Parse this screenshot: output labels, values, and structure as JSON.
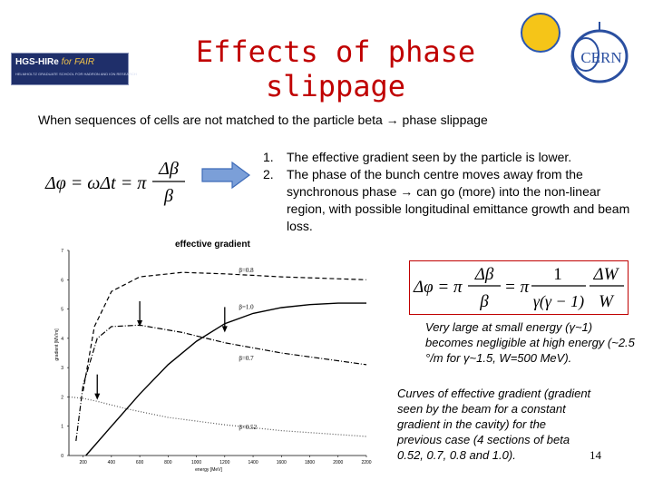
{
  "slide": {
    "title": "Effects of phase slippage",
    "intro": "When sequences of cells are not matched to the particle beta → phase slippage",
    "items": [
      {
        "num": "1.",
        "text": "The effective gradient seen by the particle is lower."
      },
      {
        "num": "2.",
        "text": "The phase of the bunch centre moves away from the synchronous phase → can go (more) into the non-linear region, with possible longitudinal emittance growth and beam loss."
      }
    ],
    "note1": "Very large at small energy (γ~1) becomes negligible at high energy (~2.5 °/m for γ~1.5, W=500 MeV).",
    "note2": "Curves of effective gradient (gradient seen by the beam for a constant gradient in the cavity) for the previous case (4 sections of beta 0.52, 0.7, 0.8 and 1.0).",
    "page_number": "14"
  },
  "logos": {
    "left_main": "HGS-HIRe",
    "left_for": "for FAIR",
    "left_sub": "HELMHOLTZ GRADUATE SCHOOL FOR HADRON AND ION RESEARCH",
    "right": "CERN"
  },
  "equations": {
    "eq1": {
      "lhs": "Δφ = ωΔt = π",
      "num": "Δβ",
      "den": "β"
    },
    "eq2": {
      "lhs": "Δφ = π",
      "frac1_num": "Δβ",
      "frac1_den": "β",
      "eq": "= π",
      "frac2_num": "1",
      "frac2_den": "γ(γ − 1)",
      "frac3_num": "ΔW",
      "frac3_den": "W"
    }
  },
  "chart_data": {
    "type": "line",
    "title": "effective gradient",
    "xlabel": "energy [MeV]",
    "ylabel": "gradient [MV/m]",
    "xlim": [
      100,
      2200
    ],
    "ylim": [
      0,
      7
    ],
    "xticks": [
      "200",
      "400",
      "600",
      "800",
      "1000",
      "1200",
      "1400",
      "1600",
      "1800",
      "2000",
      "2200"
    ],
    "yticks": [
      "0",
      "1",
      "2",
      "3",
      "4",
      "5",
      "6",
      "7"
    ],
    "series": [
      {
        "name": "β=0.8",
        "dash": "dashed",
        "x": [
          200,
          280,
          400,
          600,
          900,
          1200,
          1600,
          2200
        ],
        "y": [
          2.2,
          4.4,
          5.6,
          6.1,
          6.25,
          6.2,
          6.1,
          6.0
        ]
      },
      {
        "name": "β=1.0",
        "dash": "solid",
        "x": [
          220,
          400,
          600,
          800,
          1000,
          1200,
          1400,
          1600,
          1800,
          2000,
          2200
        ],
        "y": [
          0.0,
          1.0,
          2.1,
          3.1,
          3.9,
          4.5,
          4.85,
          5.05,
          5.15,
          5.2,
          5.2
        ]
      },
      {
        "name": "β=0.7",
        "dash": "dash-dot",
        "x": [
          150,
          200,
          300,
          400,
          600,
          900,
          1200,
          1600,
          2200
        ],
        "y": [
          0.5,
          2.4,
          4.0,
          4.4,
          4.45,
          4.2,
          3.85,
          3.5,
          3.1
        ]
      },
      {
        "name": "β=0.52",
        "dash": "dotted",
        "x": [
          100,
          200,
          300,
          500,
          800,
          1200,
          1600,
          2200
        ],
        "y": [
          2.0,
          1.95,
          1.85,
          1.6,
          1.3,
          1.05,
          0.85,
          0.65
        ]
      }
    ],
    "label_pos": [
      [
        1300,
        6.25
      ],
      [
        1300,
        5.0
      ],
      [
        1300,
        3.25
      ],
      [
        1300,
        0.9
      ]
    ],
    "markers": [
      [
        300,
        1.9
      ],
      [
        600,
        4.4
      ],
      [
        1200,
        4.2
      ]
    ]
  }
}
